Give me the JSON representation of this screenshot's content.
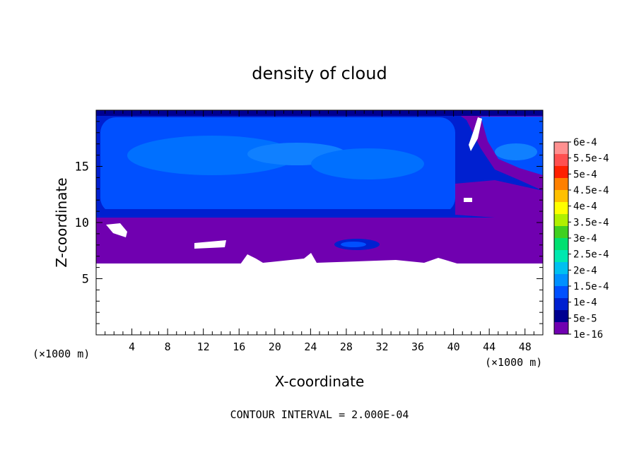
{
  "chart_data": {
    "type": "heatmap",
    "title": "density of cloud",
    "xlabel": "X-coordinate",
    "ylabel": "Z-coordinate",
    "x_unit": "(×1000 m)",
    "z_unit": "(×1000 m)",
    "xlim": [
      0,
      50
    ],
    "ylim": [
      0,
      20
    ],
    "x_ticks": [
      "4",
      "8",
      "12",
      "16",
      "20",
      "24",
      "28",
      "32",
      "36",
      "40",
      "44",
      "48"
    ],
    "y_ticks": [
      "5",
      "10",
      "15"
    ],
    "footer": "CONTOUR INTERVAL = 2.000E-04",
    "colorbar": {
      "labels": [
        "6e-4",
        "5.5e-4",
        "5e-4",
        "4.5e-4",
        "4e-4",
        "3.5e-4",
        "3e-4",
        "2.5e-4",
        "2e-4",
        "1.5e-4",
        "1e-4",
        "5e-5",
        "1e-16"
      ],
      "colors": [
        "#ff9090",
        "#ff5050",
        "#ff2000",
        "#ff8000",
        "#ffc000",
        "#ffff00",
        "#b0f000",
        "#40d020",
        "#00e070",
        "#00e8b0",
        "#00c0f0",
        "#0090ff",
        "#0050ff",
        "#0020d0",
        "#000090",
        "#7000b0"
      ]
    },
    "regions": [
      {
        "name": "cloud-free below",
        "z_range": [
          0,
          6.3
        ]
      },
      {
        "name": "lowest density layer",
        "z_range": [
          6.3,
          10.5
        ],
        "level": "1e-16"
      },
      {
        "name": "cloud layer",
        "z_range": [
          10.5,
          19.7
        ],
        "level": "1e-4 to 1.5e-4"
      }
    ]
  }
}
